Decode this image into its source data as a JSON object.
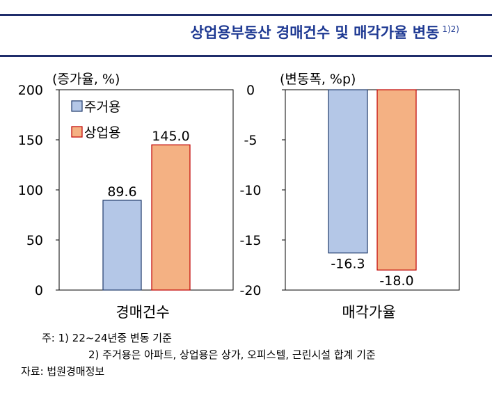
{
  "title": "상업용부동산 경매건수 및 매각가율 변동",
  "title_sup": "1)2)",
  "chart_data": [
    {
      "type": "bar",
      "unit_label": "(증가율, %)",
      "categories": [
        "경매건수"
      ],
      "ylim": [
        0,
        200
      ],
      "yticks": [
        "200",
        "150",
        "100",
        "50",
        "0"
      ],
      "series": [
        {
          "name": "주거용",
          "values": [
            89.6
          ],
          "color": "#b4c7e7"
        },
        {
          "name": "상업용",
          "values": [
            145.0
          ],
          "color": "#f4b183"
        }
      ],
      "data_labels": [
        "89.6",
        "145.0"
      ],
      "legend": "top-left"
    },
    {
      "type": "bar",
      "unit_label": "(변동폭, %p)",
      "categories": [
        "매각가율"
      ],
      "ylim": [
        -20,
        0
      ],
      "yticks": [
        "0",
        "-5",
        "-10",
        "-15",
        "-20"
      ],
      "series": [
        {
          "name": "주거용",
          "values": [
            -16.3
          ],
          "color": "#b4c7e7"
        },
        {
          "name": "상업용",
          "values": [
            -18.0
          ],
          "color": "#f4b183"
        }
      ],
      "data_labels": [
        "-16.3",
        "-18.0"
      ]
    }
  ],
  "notes": {
    "line1": "주: 1) 22~24년중 변동 기준",
    "line2": "2) 주거용은 아파트, 상업용은 상가, 오피스텔, 근린시설 합계 기준",
    "source": "자료: 법원경매정보"
  }
}
